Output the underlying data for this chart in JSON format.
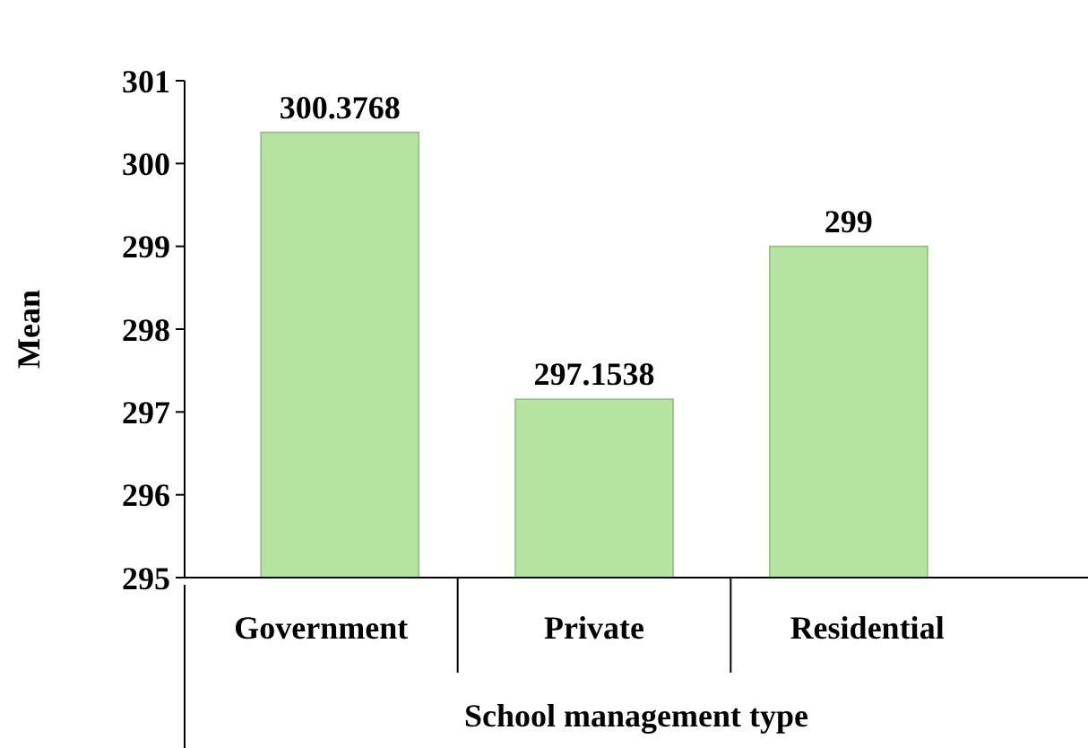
{
  "chart_data": {
    "type": "bar",
    "xlabel": "School management type",
    "ylabel": "Mean",
    "categories": [
      "Government",
      "Private",
      "Residential"
    ],
    "values": [
      300.3768,
      297.1538,
      299
    ],
    "color": "#b5e3a0",
    "ylim": [
      295,
      301
    ],
    "yticks": [
      295,
      296,
      297,
      298,
      299,
      300,
      301
    ],
    "data_labels": true,
    "grid": false
  }
}
